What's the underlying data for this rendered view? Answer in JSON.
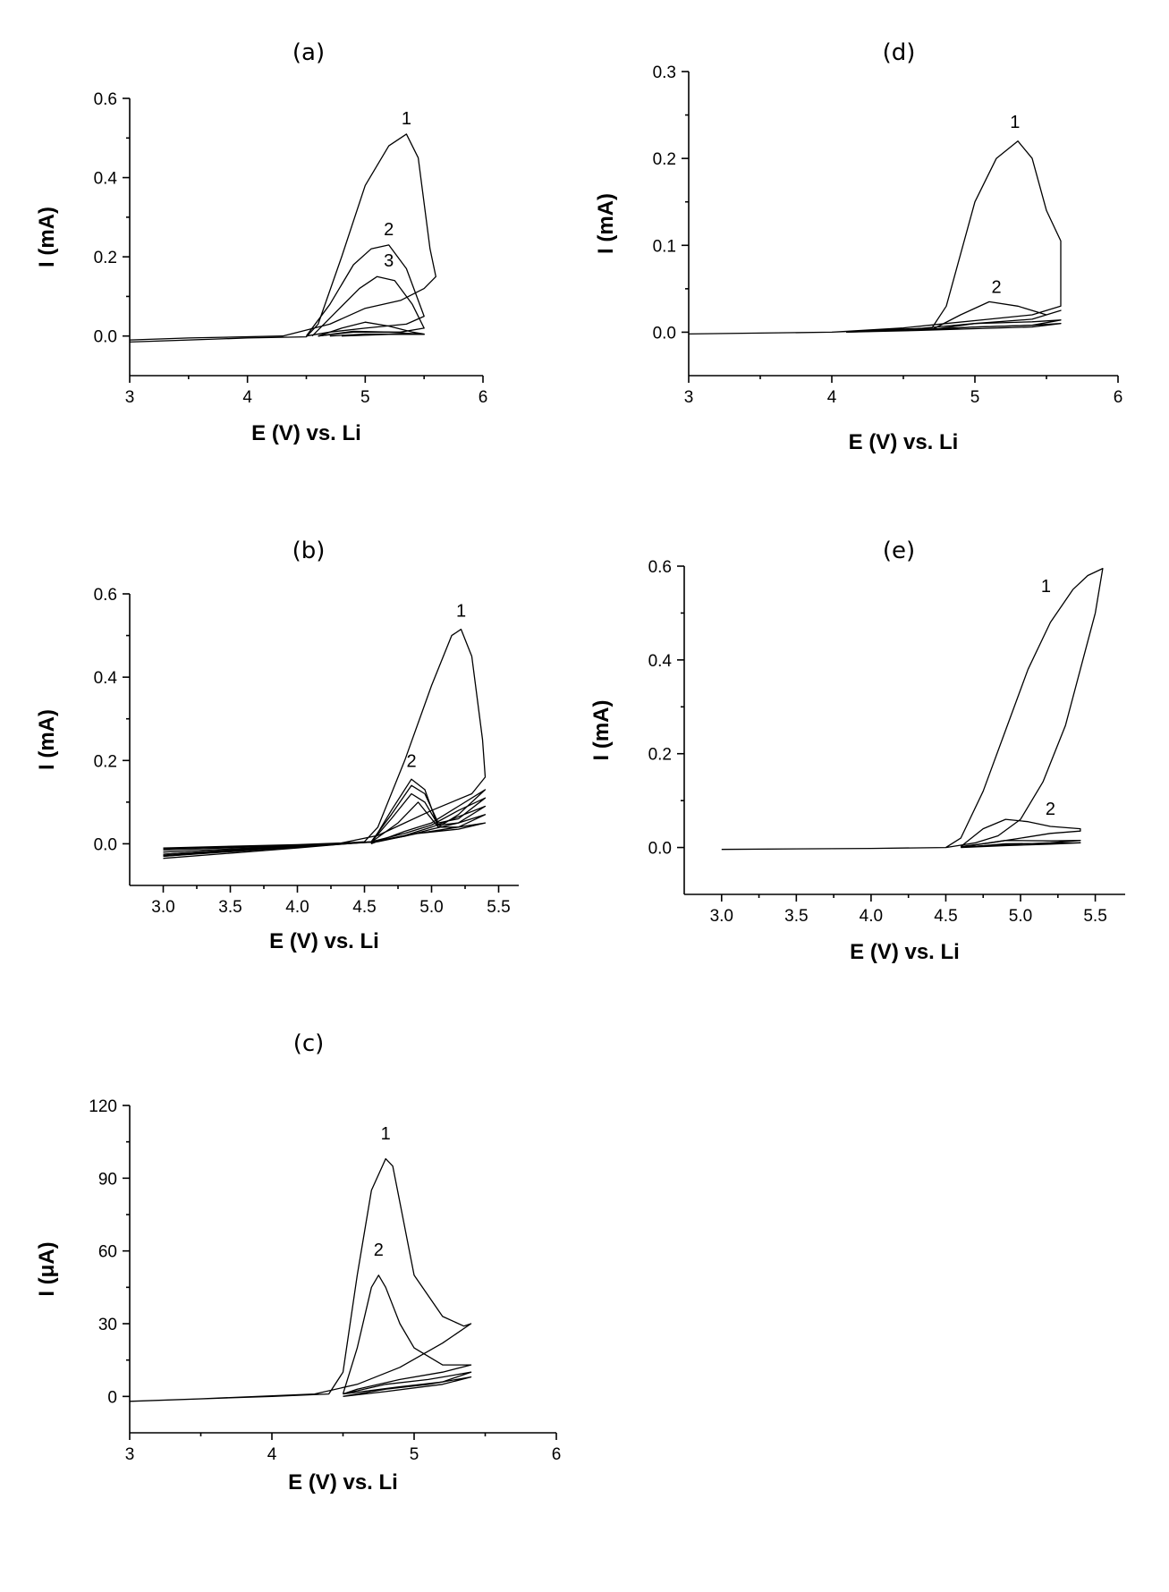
{
  "chart_data": [
    {
      "id": "a",
      "type": "line",
      "title": "(a)",
      "xlabel": "E (V) vs. Li",
      "ylabel": "I (mA)",
      "xlim": [
        3,
        6
      ],
      "ylim": [
        -0.1,
        0.6
      ],
      "xticks": [
        3,
        4,
        5,
        6
      ],
      "xtick_labels": [
        "3",
        "4",
        "5",
        "6"
      ],
      "yticks": [
        0.0,
        0.2,
        0.4,
        0.6
      ],
      "ytick_labels": [
        "0.0",
        "0.2",
        "0.4",
        "0.6"
      ],
      "series": [
        {
          "name": "1",
          "x": [
            3.0,
            4.0,
            4.5,
            4.6,
            4.8,
            5.0,
            5.2,
            5.35,
            5.45,
            5.55,
            5.6,
            5.5,
            5.3,
            5.0,
            4.7,
            4.3,
            3.5,
            3.0
          ],
          "y": [
            -0.015,
            -0.005,
            -0.002,
            0.03,
            0.2,
            0.38,
            0.48,
            0.51,
            0.45,
            0.22,
            0.15,
            0.12,
            0.09,
            0.07,
            0.03,
            0.0,
            -0.005,
            -0.01
          ]
        },
        {
          "name": "2",
          "x": [
            4.5,
            4.7,
            4.9,
            5.05,
            5.2,
            5.35,
            5.5,
            5.35,
            5.0,
            4.7,
            4.5
          ],
          "y": [
            0.0,
            0.08,
            0.18,
            0.22,
            0.23,
            0.17,
            0.05,
            0.03,
            0.02,
            0.01,
            0.0
          ]
        },
        {
          "name": "3",
          "x": [
            4.55,
            4.75,
            4.95,
            5.1,
            5.25,
            5.4,
            5.5,
            5.3,
            4.9,
            4.6
          ],
          "y": [
            0.0,
            0.06,
            0.12,
            0.15,
            0.14,
            0.08,
            0.02,
            0.01,
            0.01,
            0.0
          ]
        },
        {
          "name": "",
          "x": [
            4.6,
            4.8,
            5.0,
            5.2,
            5.4,
            5.5,
            5.3,
            5.0,
            4.7
          ],
          "y": [
            0.0,
            0.02,
            0.035,
            0.025,
            0.01,
            0.005,
            0.005,
            0.005,
            0.0
          ]
        },
        {
          "name": "",
          "x": [
            4.6,
            4.9,
            5.2,
            5.5,
            5.2,
            4.8
          ],
          "y": [
            0.0,
            0.012,
            0.01,
            0.004,
            0.004,
            0.0
          ]
        }
      ],
      "annotations": [
        {
          "text": "1",
          "x": 5.35,
          "y": 0.535
        },
        {
          "text": "2",
          "x": 5.2,
          "y": 0.255
        },
        {
          "text": "3",
          "x": 5.2,
          "y": 0.175
        }
      ]
    },
    {
      "id": "b",
      "type": "line",
      "title": "(b)",
      "xlabel": "E (V) vs. Li",
      "ylabel": "I (mA)",
      "xlim": [
        2.75,
        5.65
      ],
      "ylim": [
        -0.1,
        0.6
      ],
      "xticks": [
        3.0,
        3.5,
        4.0,
        4.5,
        5.0,
        5.5
      ],
      "xtick_labels": [
        "3.0",
        "3.5",
        "4.0",
        "4.5",
        "5.0",
        "5.5"
      ],
      "yticks": [
        0.0,
        0.2,
        0.4,
        0.6
      ],
      "ytick_labels": [
        "0.0",
        "0.2",
        "0.4",
        "0.6"
      ],
      "series": [
        {
          "name": "1",
          "x": [
            3.0,
            4.0,
            4.5,
            4.6,
            4.8,
            5.0,
            5.15,
            5.22,
            5.3,
            5.38,
            5.4,
            5.3,
            5.0,
            4.8,
            4.6,
            4.3,
            3.5,
            3.0
          ],
          "y": [
            -0.03,
            -0.005,
            0.005,
            0.04,
            0.2,
            0.38,
            0.5,
            0.515,
            0.45,
            0.25,
            0.16,
            0.12,
            0.08,
            0.05,
            0.02,
            0.0,
            -0.015,
            -0.025
          ]
        },
        {
          "name": "2",
          "x": [
            4.55,
            4.7,
            4.85,
            4.95,
            5.05,
            5.2,
            5.4,
            5.2,
            5.0,
            4.8,
            4.55
          ],
          "y": [
            0.0,
            0.08,
            0.155,
            0.13,
            0.04,
            0.07,
            0.13,
            0.09,
            0.05,
            0.03,
            0.0
          ]
        },
        {
          "name": "",
          "x": [
            3.0,
            4.0,
            4.55,
            4.7,
            4.85,
            4.95,
            5.05,
            5.2,
            5.4,
            5.2,
            5.0,
            4.8,
            4.55,
            4.0,
            3.0
          ],
          "y": [
            -0.035,
            -0.01,
            0.005,
            0.07,
            0.14,
            0.12,
            0.05,
            0.06,
            0.11,
            0.08,
            0.045,
            0.025,
            0.005,
            -0.005,
            -0.02
          ]
        },
        {
          "name": "",
          "x": [
            3.0,
            4.0,
            4.55,
            4.7,
            4.85,
            4.95,
            5.05,
            5.2,
            5.4,
            5.2,
            5.0,
            4.8,
            4.55,
            4.0,
            3.0
          ],
          "y": [
            -0.03,
            -0.008,
            0.004,
            0.06,
            0.12,
            0.1,
            0.045,
            0.05,
            0.09,
            0.065,
            0.04,
            0.02,
            0.004,
            -0.004,
            -0.015
          ]
        },
        {
          "name": "",
          "x": [
            3.0,
            4.0,
            4.55,
            4.75,
            4.9,
            5.05,
            5.2,
            5.4,
            5.2,
            5.0,
            4.8,
            4.55,
            4.0,
            3.0
          ],
          "y": [
            -0.028,
            -0.006,
            0.004,
            0.05,
            0.1,
            0.04,
            0.04,
            0.07,
            0.05,
            0.035,
            0.018,
            0.004,
            -0.003,
            -0.012
          ]
        },
        {
          "name": "",
          "x": [
            3.0,
            4.0,
            4.6,
            4.9,
            5.2,
            5.4,
            5.2,
            4.9,
            4.6,
            4.0,
            3.0
          ],
          "y": [
            -0.025,
            -0.005,
            0.005,
            0.025,
            0.035,
            0.05,
            0.04,
            0.025,
            0.005,
            -0.002,
            -0.01
          ]
        }
      ],
      "annotations": [
        {
          "text": "1",
          "x": 5.22,
          "y": 0.545
        },
        {
          "text": "2",
          "x": 4.85,
          "y": 0.185
        }
      ]
    },
    {
      "id": "c",
      "type": "line",
      "title": "(c)",
      "xlabel": "E (V) vs. Li",
      "ylabel": "I (μA)",
      "xlim": [
        3,
        6
      ],
      "ylim": [
        -15,
        120
      ],
      "xticks": [
        3,
        4,
        5,
        6
      ],
      "xtick_labels": [
        "3",
        "4",
        "5",
        "6"
      ],
      "yticks": [
        0,
        30,
        60,
        90,
        120
      ],
      "ytick_labels": [
        "0",
        "30",
        "60",
        "90",
        "120"
      ],
      "series": [
        {
          "name": "1",
          "x": [
            3.0,
            4.0,
            4.4,
            4.5,
            4.6,
            4.7,
            4.8,
            4.85,
            4.9,
            5.0,
            5.2,
            5.35,
            5.4,
            5.2,
            4.9,
            4.6,
            4.3,
            3.5,
            3.0
          ],
          "y": [
            -2,
            0,
            1,
            10,
            50,
            85,
            98,
            95,
            80,
            50,
            33,
            29,
            30,
            22,
            12,
            5,
            1,
            -1,
            -2
          ]
        },
        {
          "name": "2",
          "x": [
            4.5,
            4.6,
            4.7,
            4.75,
            4.8,
            4.9,
            5.0,
            5.2,
            5.4,
            5.2,
            4.9,
            4.6,
            4.5
          ],
          "y": [
            1,
            20,
            45,
            50,
            45,
            30,
            20,
            13,
            13,
            10,
            7,
            3,
            1
          ]
        },
        {
          "name": "",
          "x": [
            4.5,
            4.8,
            5.1,
            5.4,
            5.2,
            4.9,
            4.5
          ],
          "y": [
            1,
            5,
            7,
            10,
            6,
            4,
            1
          ]
        },
        {
          "name": "",
          "x": [
            4.5,
            4.8,
            5.1,
            5.4,
            5.2,
            4.8,
            4.5
          ],
          "y": [
            0,
            3,
            5,
            8,
            5,
            2,
            0
          ]
        }
      ],
      "annotations": [
        {
          "text": "1",
          "x": 4.8,
          "y": 106
        },
        {
          "text": "2",
          "x": 4.75,
          "y": 58
        }
      ]
    },
    {
      "id": "d",
      "type": "line",
      "title": "(d)",
      "xlabel": "E (V) vs. Li",
      "ylabel": "I (mA)",
      "xlim": [
        3,
        6
      ],
      "ylim": [
        -0.05,
        0.3
      ],
      "xticks": [
        3,
        4,
        5,
        6
      ],
      "xtick_labels": [
        "3",
        "4",
        "5",
        "6"
      ],
      "yticks": [
        0.0,
        0.1,
        0.2,
        0.3
      ],
      "ytick_labels": [
        "0.0",
        "0.1",
        "0.2",
        "0.3"
      ],
      "series": [
        {
          "name": "1",
          "x": [
            3.0,
            4.0,
            4.7,
            4.8,
            5.0,
            5.15,
            5.3,
            5.4,
            5.5,
            5.6,
            5.6,
            5.4,
            5.1,
            4.8,
            4.5,
            4.0,
            3.0
          ],
          "y": [
            -0.002,
            0.0,
            0.005,
            0.03,
            0.15,
            0.2,
            0.22,
            0.2,
            0.14,
            0.105,
            0.03,
            0.02,
            0.015,
            0.01,
            0.005,
            0.0,
            -0.002
          ]
        },
        {
          "name": "2",
          "x": [
            4.7,
            4.9,
            5.1,
            5.3,
            5.5,
            5.6,
            5.4,
            5.0,
            4.7
          ],
          "y": [
            0.003,
            0.02,
            0.035,
            0.03,
            0.02,
            0.025,
            0.015,
            0.01,
            0.003
          ]
        },
        {
          "name": "",
          "x": [
            4.1,
            4.6,
            5.0,
            5.4,
            5.6,
            5.4,
            5.0,
            4.6,
            4.1
          ],
          "y": [
            0.0,
            0.004,
            0.01,
            0.012,
            0.014,
            0.008,
            0.006,
            0.003,
            0.0
          ]
        },
        {
          "name": "",
          "x": [
            4.1,
            4.6,
            5.0,
            5.4,
            5.6,
            5.4,
            5.0,
            4.6,
            4.1
          ],
          "y": [
            0.0,
            0.002,
            0.006,
            0.008,
            0.01,
            0.006,
            0.004,
            0.002,
            0.0
          ]
        }
      ],
      "annotations": [
        {
          "text": "1",
          "x": 5.28,
          "y": 0.235
        },
        {
          "text": "2",
          "x": 5.15,
          "y": 0.045
        }
      ]
    },
    {
      "id": "e",
      "type": "line",
      "title": "(e)",
      "xlabel": "E (V) vs. Li",
      "ylabel": "I (mA)",
      "xlim": [
        2.75,
        5.7
      ],
      "ylim": [
        -0.1,
        0.6
      ],
      "xticks": [
        3.0,
        3.5,
        4.0,
        4.5,
        5.0,
        5.5
      ],
      "xtick_labels": [
        "3.0",
        "3.5",
        "4.0",
        "4.5",
        "5.0",
        "5.5"
      ],
      "yticks": [
        0.0,
        0.2,
        0.4,
        0.6
      ],
      "ytick_labels": [
        "0.0",
        "0.2",
        "0.4",
        "0.6"
      ],
      "series": [
        {
          "name": "1",
          "x": [
            3.0,
            4.0,
            4.5,
            4.6,
            4.75,
            4.9,
            5.05,
            5.2,
            5.35,
            5.45,
            5.55,
            5.5,
            5.4,
            5.3,
            5.15,
            5.0,
            4.85,
            4.7,
            4.6,
            4.5,
            4.0,
            3.0
          ],
          "y": [
            -0.004,
            -0.002,
            0.0,
            0.02,
            0.12,
            0.25,
            0.38,
            0.48,
            0.55,
            0.58,
            0.595,
            0.5,
            0.38,
            0.26,
            0.14,
            0.06,
            0.025,
            0.01,
            0.005,
            0.0,
            -0.002,
            -0.004
          ]
        },
        {
          "name": "2",
          "x": [
            4.6,
            4.75,
            4.9,
            5.05,
            5.2,
            5.4,
            5.4,
            5.2,
            5.0,
            4.8,
            4.6
          ],
          "y": [
            0.002,
            0.04,
            0.06,
            0.055,
            0.045,
            0.04,
            0.035,
            0.03,
            0.02,
            0.01,
            0.002
          ]
        },
        {
          "name": "",
          "x": [
            4.6,
            4.9,
            5.2,
            5.4,
            5.2,
            4.9,
            4.6
          ],
          "y": [
            0.001,
            0.015,
            0.014,
            0.015,
            0.01,
            0.006,
            0.001
          ]
        },
        {
          "name": "",
          "x": [
            4.6,
            4.9,
            5.2,
            5.4,
            5.2,
            4.9,
            4.6
          ],
          "y": [
            0.0,
            0.008,
            0.009,
            0.01,
            0.007,
            0.004,
            0.0
          ]
        }
      ],
      "annotations": [
        {
          "text": "1",
          "x": 5.17,
          "y": 0.545
        },
        {
          "text": "2",
          "x": 5.2,
          "y": 0.07
        }
      ]
    }
  ]
}
